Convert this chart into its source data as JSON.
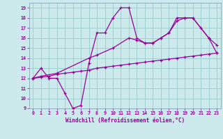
{
  "xlabel": "Windchill (Refroidissement éolien,°C)",
  "xlim": [
    -0.5,
    23.5
  ],
  "ylim": [
    9,
    19.5
  ],
  "xticks": [
    0,
    1,
    2,
    3,
    4,
    5,
    6,
    7,
    8,
    9,
    10,
    11,
    12,
    13,
    14,
    15,
    16,
    17,
    18,
    19,
    20,
    21,
    22,
    23
  ],
  "yticks": [
    9,
    10,
    11,
    12,
    13,
    14,
    15,
    16,
    17,
    18,
    19
  ],
  "bg_color": "#cce9ec",
  "line_color": "#990099",
  "grid_color": "#99cccc",
  "line1_x": [
    0,
    1,
    2,
    3,
    4,
    5,
    6,
    7,
    8,
    9,
    10,
    11,
    12,
    13,
    14,
    15,
    16,
    17,
    18,
    19,
    20,
    21,
    22,
    23
  ],
  "line1_y": [
    12,
    13,
    12,
    12,
    10.5,
    9,
    9.3,
    13.5,
    16.5,
    16.5,
    18,
    19,
    19,
    16,
    15.5,
    15.5,
    16,
    16.5,
    18,
    18,
    18,
    17,
    16,
    14.5
  ],
  "line2_x": [
    0,
    1,
    3,
    7,
    8,
    10,
    12,
    13,
    14,
    15,
    16,
    17,
    18,
    19,
    20,
    22,
    23
  ],
  "line2_y": [
    12,
    12.2,
    12.5,
    14,
    14.3,
    15,
    16,
    15.8,
    15.5,
    15.5,
    16,
    16.5,
    17.7,
    18,
    18,
    16,
    15.3
  ],
  "line3_x": [
    0,
    1,
    2,
    3,
    4,
    5,
    6,
    7,
    8,
    9,
    10,
    11,
    12,
    13,
    14,
    15,
    16,
    17,
    18,
    19,
    20,
    21,
    22,
    23
  ],
  "line3_y": [
    12,
    12.1,
    12.2,
    12.4,
    12.5,
    12.6,
    12.7,
    12.8,
    13.0,
    13.1,
    13.2,
    13.3,
    13.4,
    13.5,
    13.6,
    13.7,
    13.8,
    13.9,
    14.0,
    14.1,
    14.2,
    14.3,
    14.4,
    14.5
  ]
}
